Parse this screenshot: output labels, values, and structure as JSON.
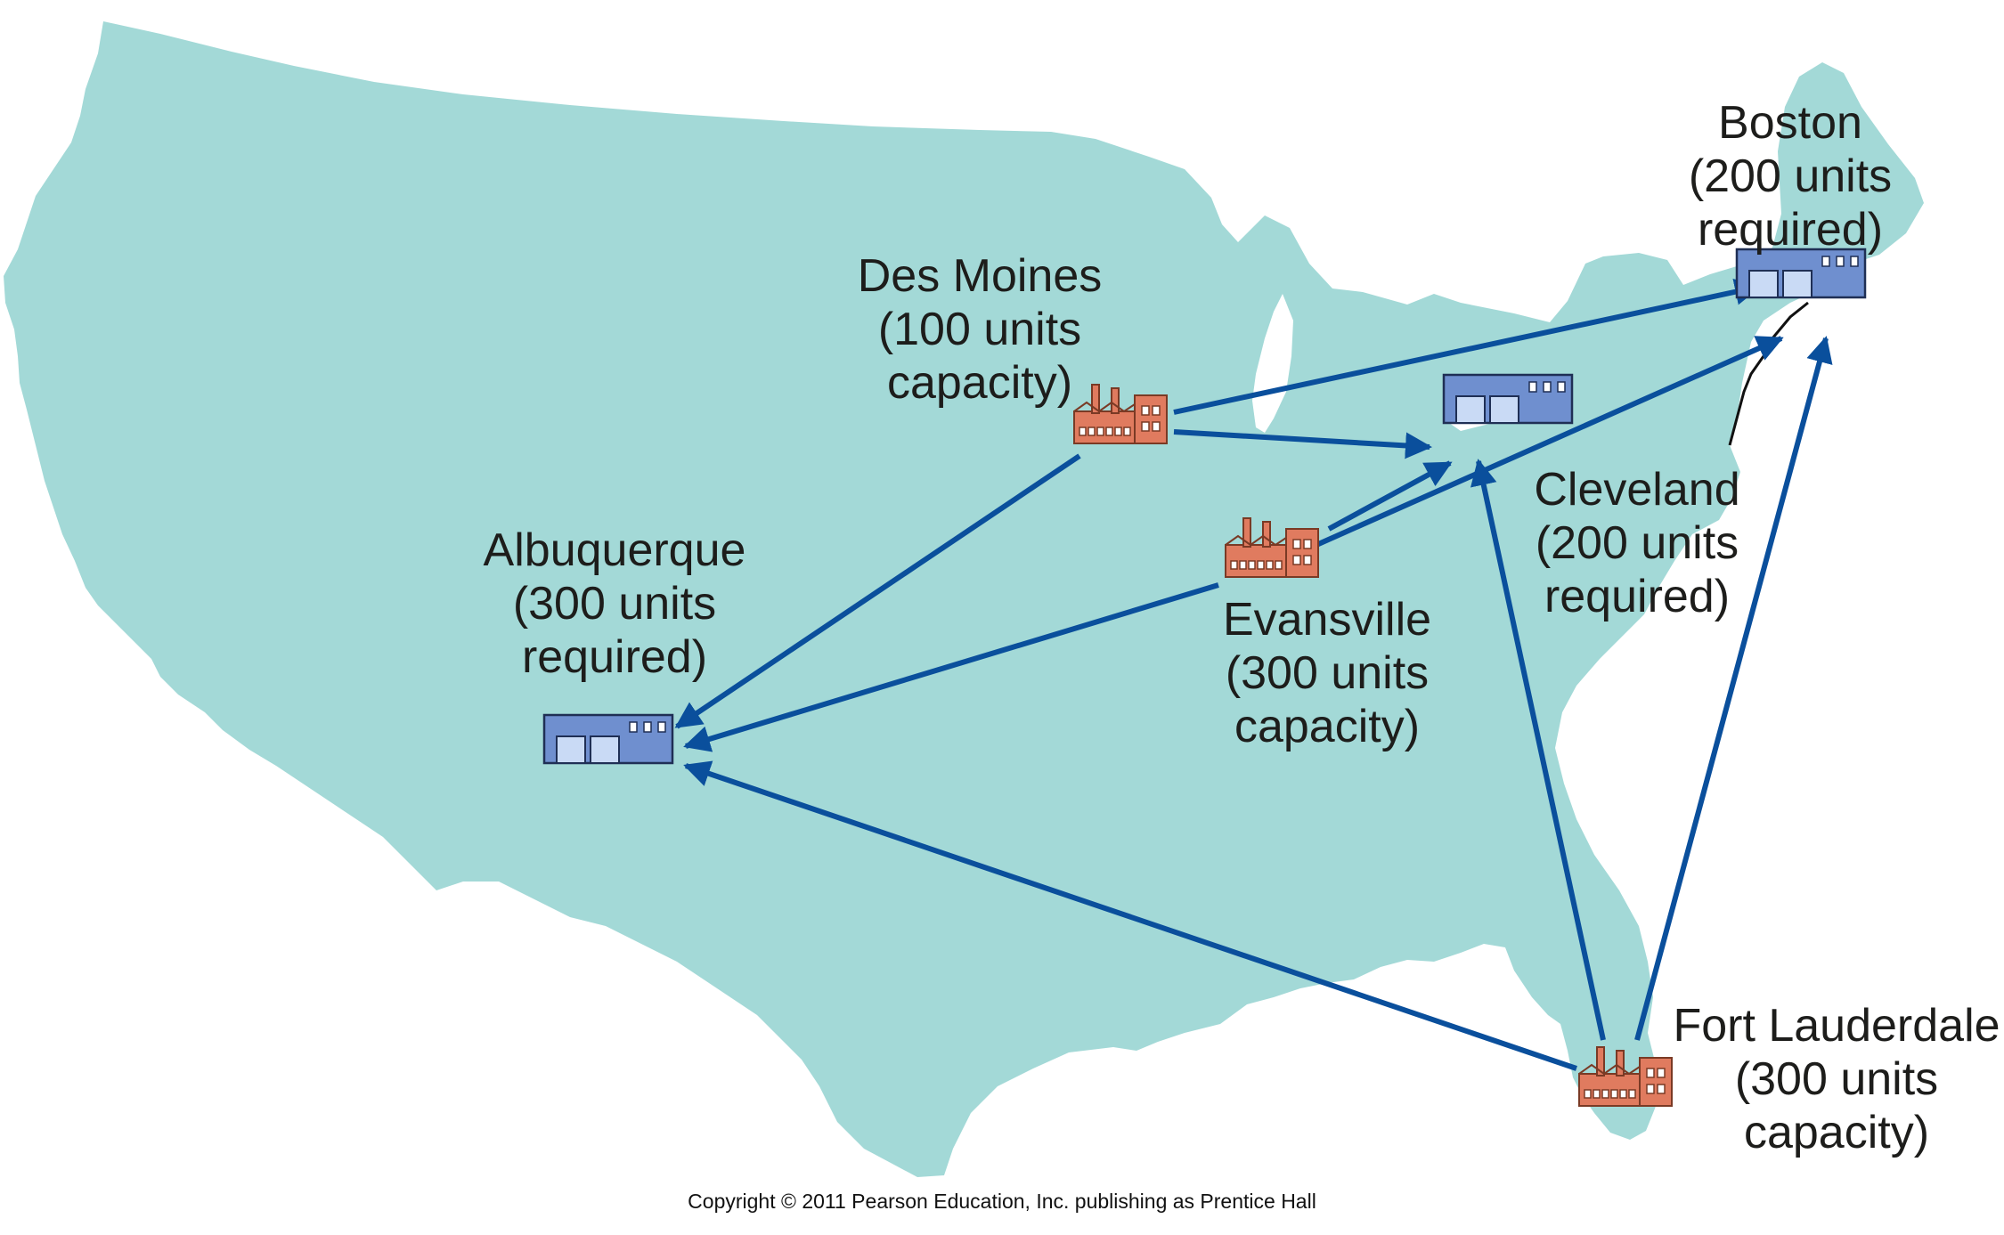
{
  "locations": {
    "boston": {
      "name": "Boston",
      "detail_1": "(200 units",
      "detail_2": "required)",
      "type": "warehouse"
    },
    "des_moines": {
      "name": "Des Moines",
      "detail_1": "(100 units",
      "detail_2": "capacity)",
      "type": "factory"
    },
    "cleveland": {
      "name": "Cleveland",
      "detail_1": "(200 units",
      "detail_2": "required)",
      "type": "warehouse"
    },
    "albuquerque": {
      "name": "Albuquerque",
      "detail_1": "(300 units",
      "detail_2": "required)",
      "type": "warehouse"
    },
    "evansville": {
      "name": "Evansville",
      "detail_1": "(300 units",
      "detail_2": "capacity)",
      "type": "factory"
    },
    "fort_lauderdale": {
      "name": "Fort Lauderdale",
      "detail_1": "(300 units",
      "detail_2": "capacity)",
      "type": "factory"
    }
  },
  "routes": [
    {
      "from": "Des Moines",
      "to": "Boston"
    },
    {
      "from": "Des Moines",
      "to": "Cleveland"
    },
    {
      "from": "Des Moines",
      "to": "Albuquerque"
    },
    {
      "from": "Evansville",
      "to": "Cleveland"
    },
    {
      "from": "Evansville",
      "to": "Boston"
    },
    {
      "from": "Evansville",
      "to": "Albuquerque"
    },
    {
      "from": "Fort Lauderdale",
      "to": "Albuquerque"
    },
    {
      "from": "Fort Lauderdale",
      "to": "Cleveland"
    },
    {
      "from": "Fort Lauderdale",
      "to": "Boston"
    }
  ],
  "copyright": "Copyright © 2011 Pearson Education, Inc. publishing as Prentice Hall",
  "colors": {
    "land": "#a3d9d7",
    "arrow": "#0a4f9c",
    "factory": "#e07b5f",
    "warehouse": "#6f8fcf"
  },
  "icons": {
    "factory": "factory-icon",
    "warehouse": "warehouse-icon"
  }
}
